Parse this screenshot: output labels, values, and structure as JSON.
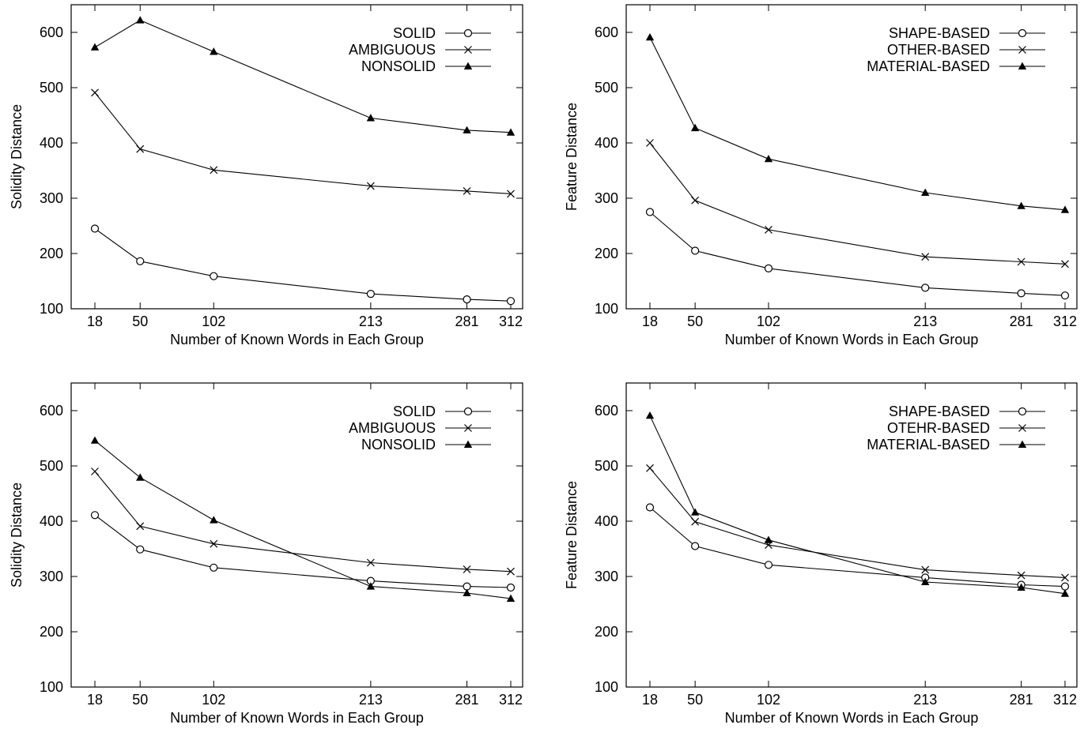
{
  "chart_data": [
    {
      "type": "line",
      "xlabel": "Number of Known Words in Each Group",
      "ylabel": "Solidity Distance",
      "xlim": [
        18,
        312
      ],
      "ylim": [
        100,
        650
      ],
      "x": [
        18,
        50,
        102,
        213,
        281,
        312
      ],
      "xticks": [
        "18",
        "50",
        "102",
        "213",
        "281",
        "312"
      ],
      "yticks": [
        "100",
        "200",
        "300",
        "400",
        "500",
        "600"
      ],
      "legend_position": "top-right",
      "series": [
        {
          "name": "SOLID",
          "marker": "circle",
          "values": [
            245,
            186,
            159,
            127,
            117,
            114
          ]
        },
        {
          "name": "AMBIGUOUS",
          "marker": "cross",
          "values": [
            491,
            389,
            351,
            322,
            313,
            308
          ]
        },
        {
          "name": "NONSOLID",
          "marker": "triangle",
          "values": [
            573,
            622,
            565,
            445,
            423,
            419
          ]
        }
      ]
    },
    {
      "type": "line",
      "xlabel": "Number of Known Words in Each Group",
      "ylabel": "Feature Distance",
      "xlim": [
        18,
        312
      ],
      "ylim": [
        100,
        650
      ],
      "x": [
        18,
        50,
        102,
        213,
        281,
        312
      ],
      "xticks": [
        "18",
        "50",
        "102",
        "213",
        "281",
        "312"
      ],
      "yticks": [
        "100",
        "200",
        "300",
        "400",
        "500",
        "600"
      ],
      "legend_position": "top-right",
      "series": [
        {
          "name": "SHAPE-BASED",
          "marker": "circle",
          "values": [
            275,
            205,
            173,
            138,
            128,
            124
          ]
        },
        {
          "name": "OTHER-BASED",
          "marker": "cross",
          "values": [
            400,
            296,
            243,
            194,
            185,
            181
          ]
        },
        {
          "name": "MATERIAL-BASED",
          "marker": "triangle",
          "values": [
            591,
            427,
            371,
            310,
            286,
            279
          ]
        }
      ]
    },
    {
      "type": "line",
      "xlabel": "Number of Known Words in Each Group",
      "ylabel": "Solidity Distance",
      "xlim": [
        18,
        312
      ],
      "ylim": [
        100,
        650
      ],
      "x": [
        18,
        50,
        102,
        213,
        281,
        312
      ],
      "xticks": [
        "18",
        "50",
        "102",
        "213",
        "281",
        "312"
      ],
      "yticks": [
        "100",
        "200",
        "300",
        "400",
        "500",
        "600"
      ],
      "legend_position": "top-right",
      "series": [
        {
          "name": "SOLID",
          "marker": "circle",
          "values": [
            411,
            349,
            316,
            292,
            282,
            280
          ]
        },
        {
          "name": "AMBIGUOUS",
          "marker": "cross",
          "values": [
            490,
            391,
            359,
            325,
            313,
            309
          ]
        },
        {
          "name": "NONSOLID",
          "marker": "triangle",
          "values": [
            546,
            479,
            402,
            282,
            270,
            260
          ]
        }
      ]
    },
    {
      "type": "line",
      "xlabel": "Number of Known Words in Each Group",
      "ylabel": "Feature Distance",
      "xlim": [
        18,
        312
      ],
      "ylim": [
        100,
        650
      ],
      "x": [
        18,
        50,
        102,
        213,
        281,
        312
      ],
      "xticks": [
        "18",
        "50",
        "102",
        "213",
        "281",
        "312"
      ],
      "yticks": [
        "100",
        "200",
        "300",
        "400",
        "500",
        "600"
      ],
      "legend_position": "top-right",
      "series": [
        {
          "name": "SHAPE-BASED",
          "marker": "circle",
          "values": [
            425,
            355,
            321,
            298,
            285,
            282
          ]
        },
        {
          "name": "OTEHR-BASED",
          "marker": "cross",
          "values": [
            496,
            399,
            357,
            312,
            302,
            298
          ]
        },
        {
          "name": "MATERIAL-BASED",
          "marker": "triangle",
          "values": [
            591,
            416,
            366,
            290,
            280,
            269
          ]
        }
      ]
    }
  ]
}
